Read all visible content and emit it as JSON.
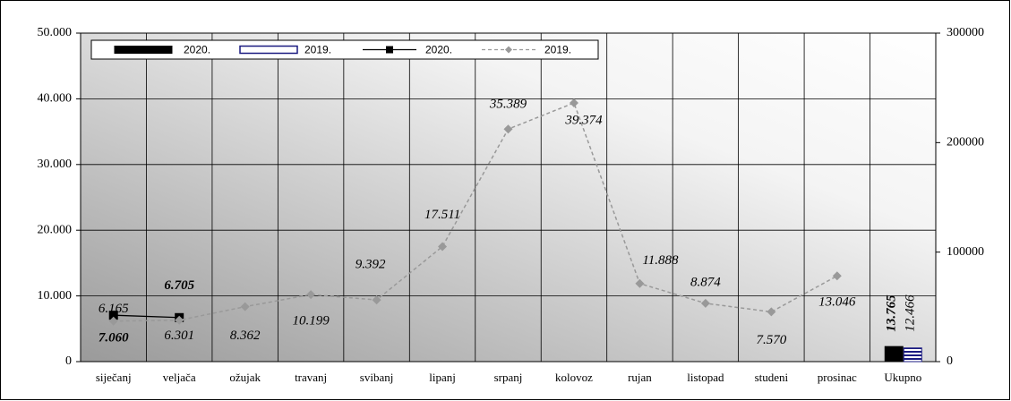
{
  "chart_data": {
    "type": "combo",
    "categories": [
      "siječanj",
      "veljača",
      "ožujak",
      "travanj",
      "svibanj",
      "lipanj",
      "srpanj",
      "kolovoz",
      "rujan",
      "listopad",
      "studeni",
      "prosinac",
      "Ukupno"
    ],
    "ylim": [
      0,
      50000
    ],
    "yticks": [
      0,
      {
        "value": 10000,
        "label": "10.000"
      },
      {
        "value": 20000,
        "label": "20.000"
      },
      {
        "value": 30000,
        "label": "30.000"
      },
      {
        "value": 40000,
        "label": "40.000"
      },
      {
        "value": 50000,
        "label": "50.000"
      }
    ],
    "y2lim": [
      0,
      300000
    ],
    "y2ticks": [
      0,
      100000,
      200000,
      300000
    ],
    "grid": true,
    "legend": "top",
    "series": [
      {
        "name": "2020.",
        "type": "bar",
        "axis": "y2",
        "color": "#000000",
        "values": [
          null,
          null,
          null,
          null,
          null,
          null,
          null,
          null,
          null,
          null,
          null,
          null,
          13765
        ],
        "value_labels": [
          null,
          null,
          null,
          null,
          null,
          null,
          null,
          null,
          null,
          null,
          null,
          null,
          "13.765"
        ]
      },
      {
        "name": "2019.",
        "type": "bar",
        "axis": "y2",
        "color": "#1a1a80",
        "values": [
          null,
          null,
          null,
          null,
          null,
          null,
          null,
          null,
          null,
          null,
          null,
          null,
          12466
        ],
        "value_labels": [
          null,
          null,
          null,
          null,
          null,
          null,
          null,
          null,
          null,
          null,
          null,
          null,
          "12.466"
        ]
      },
      {
        "name": "2020.",
        "type": "line",
        "color": "#000000",
        "values": [
          7060,
          6705,
          null,
          null,
          null,
          null,
          null,
          null,
          null,
          null,
          null,
          null,
          null
        ],
        "value_labels": [
          "7.060",
          "6.705",
          null,
          null,
          null,
          null,
          null,
          null,
          null,
          null,
          null,
          null,
          null
        ]
      },
      {
        "name": "2019.",
        "type": "line",
        "color": "#999999",
        "values": [
          6165,
          6301,
          8362,
          10199,
          9392,
          17511,
          35389,
          39374,
          11888,
          8874,
          7570,
          13046,
          null
        ],
        "value_labels": [
          "6.165",
          "6.301",
          "8.362",
          "10.199",
          "9.392",
          "17.511",
          "35.389",
          "39.374",
          "11.888",
          "8.874",
          "7.570",
          "13.046",
          null
        ]
      }
    ]
  }
}
